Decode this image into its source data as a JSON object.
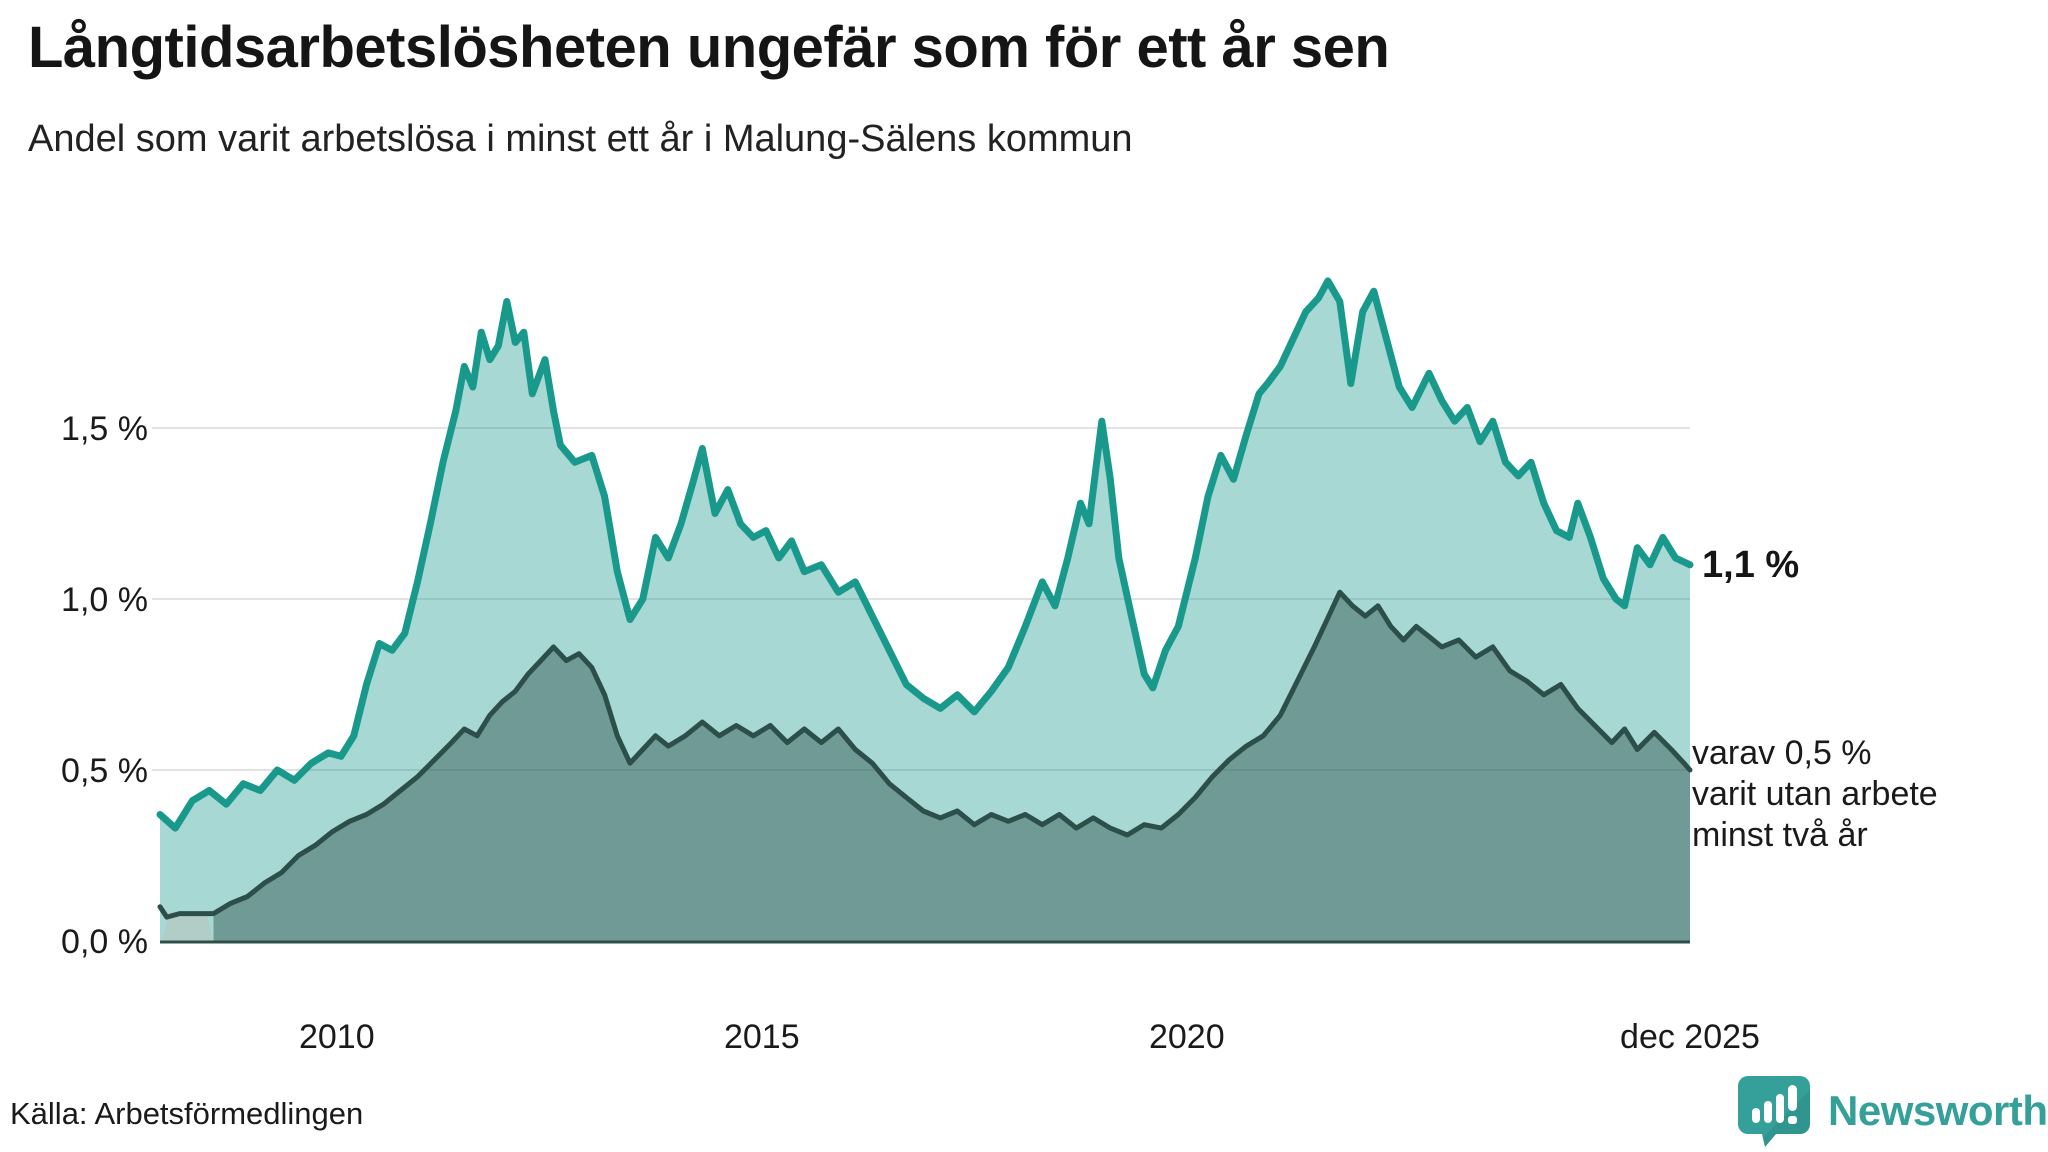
{
  "header": {
    "title": "Långtidsarbetslösheten ungefär som för ett år sen",
    "subtitle": "Andel som varit arbetslösa i minst ett år i Malung-Sälens kommun"
  },
  "annotations": {
    "latest_value": "1,1 %",
    "secondary": "varav 0,5 %\nvarit utan arbete\nminst två år"
  },
  "footer": {
    "source": "Källa: Arbetsförmedlingen",
    "logo_text": "Newsworthy"
  },
  "colors": {
    "teal_line": "#18998b",
    "teal_fill": "rgba(24,153,139,0.38)",
    "dark_line": "#2d4f4a",
    "dark_fill": "rgba(45,79,74,0.45)",
    "gridline": "#e2e2e2",
    "baseline": "#2d4f4a",
    "artifact_fill": "#b2cdc6",
    "logo_teal": "#35a09a",
    "text": "#1a1a1a"
  },
  "chart_data": {
    "type": "area",
    "title": "Långtidsarbetslösheten ungefär som för ett år sen",
    "subtitle": "Andel som varit arbetslösa i minst ett år i Malung-Sälens kommun",
    "unit": "%",
    "grid": "horizontal",
    "x_range": [
      2007.92,
      2025.92
    ],
    "ylim": [
      0,
      2.0
    ],
    "x_ticks": [
      {
        "label": "2010",
        "year": 2010
      },
      {
        "label": "2015",
        "year": 2015
      },
      {
        "label": "2020",
        "year": 2020
      },
      {
        "label": "dec 2025",
        "year": 2025.92
      }
    ],
    "y_ticks": [
      {
        "label": "0,0 %",
        "value": 0
      },
      {
        "label": "0,5 %",
        "value": 0.5
      },
      {
        "label": "1,0 %",
        "value": 1.0
      },
      {
        "label": "1,5 %",
        "value": 1.5
      }
    ],
    "series": [
      {
        "name": "Arbetslösa minst ett år",
        "end_label": "1,1 %",
        "line_color": "#18998b",
        "fill_color": "rgba(24,153,139,0.38)",
        "line_width": 7,
        "points": [
          [
            2007.92,
            0.37
          ],
          [
            2008.1,
            0.33
          ],
          [
            2008.3,
            0.41
          ],
          [
            2008.5,
            0.44
          ],
          [
            2008.7,
            0.4
          ],
          [
            2008.9,
            0.46
          ],
          [
            2009.1,
            0.44
          ],
          [
            2009.3,
            0.5
          ],
          [
            2009.5,
            0.47
          ],
          [
            2009.7,
            0.52
          ],
          [
            2009.9,
            0.55
          ],
          [
            2010.05,
            0.54
          ],
          [
            2010.2,
            0.6
          ],
          [
            2010.35,
            0.75
          ],
          [
            2010.5,
            0.87
          ],
          [
            2010.65,
            0.85
          ],
          [
            2010.8,
            0.9
          ],
          [
            2010.95,
            1.05
          ],
          [
            2011.1,
            1.22
          ],
          [
            2011.25,
            1.4
          ],
          [
            2011.4,
            1.55
          ],
          [
            2011.5,
            1.68
          ],
          [
            2011.6,
            1.62
          ],
          [
            2011.7,
            1.78
          ],
          [
            2011.8,
            1.7
          ],
          [
            2011.9,
            1.74
          ],
          [
            2012.0,
            1.87
          ],
          [
            2012.1,
            1.75
          ],
          [
            2012.2,
            1.78
          ],
          [
            2012.3,
            1.6
          ],
          [
            2012.45,
            1.7
          ],
          [
            2012.55,
            1.55
          ],
          [
            2012.63,
            1.45
          ],
          [
            2012.8,
            1.4
          ],
          [
            2013.0,
            1.42
          ],
          [
            2013.15,
            1.3
          ],
          [
            2013.3,
            1.08
          ],
          [
            2013.45,
            0.94
          ],
          [
            2013.6,
            1.0
          ],
          [
            2013.75,
            1.18
          ],
          [
            2013.9,
            1.12
          ],
          [
            2014.05,
            1.22
          ],
          [
            2014.2,
            1.35
          ],
          [
            2014.3,
            1.44
          ],
          [
            2014.45,
            1.25
          ],
          [
            2014.6,
            1.32
          ],
          [
            2014.75,
            1.22
          ],
          [
            2014.9,
            1.18
          ],
          [
            2015.05,
            1.2
          ],
          [
            2015.2,
            1.12
          ],
          [
            2015.35,
            1.17
          ],
          [
            2015.5,
            1.08
          ],
          [
            2015.7,
            1.1
          ],
          [
            2015.9,
            1.02
          ],
          [
            2016.1,
            1.05
          ],
          [
            2016.3,
            0.95
          ],
          [
            2016.5,
            0.85
          ],
          [
            2016.7,
            0.75
          ],
          [
            2016.9,
            0.71
          ],
          [
            2017.1,
            0.68
          ],
          [
            2017.3,
            0.72
          ],
          [
            2017.5,
            0.67
          ],
          [
            2017.7,
            0.73
          ],
          [
            2017.9,
            0.8
          ],
          [
            2018.1,
            0.92
          ],
          [
            2018.3,
            1.05
          ],
          [
            2018.45,
            0.98
          ],
          [
            2018.6,
            1.12
          ],
          [
            2018.75,
            1.28
          ],
          [
            2018.85,
            1.22
          ],
          [
            2019.0,
            1.52
          ],
          [
            2019.1,
            1.35
          ],
          [
            2019.2,
            1.12
          ],
          [
            2019.35,
            0.95
          ],
          [
            2019.5,
            0.78
          ],
          [
            2019.6,
            0.74
          ],
          [
            2019.75,
            0.85
          ],
          [
            2019.9,
            0.92
          ],
          [
            2020.1,
            1.12
          ],
          [
            2020.25,
            1.3
          ],
          [
            2020.4,
            1.42
          ],
          [
            2020.55,
            1.35
          ],
          [
            2020.7,
            1.48
          ],
          [
            2020.85,
            1.6
          ],
          [
            2020.95,
            1.63
          ],
          [
            2021.1,
            1.68
          ],
          [
            2021.25,
            1.76
          ],
          [
            2021.4,
            1.84
          ],
          [
            2021.55,
            1.88
          ],
          [
            2021.66,
            1.93
          ],
          [
            2021.8,
            1.87
          ],
          [
            2021.93,
            1.63
          ],
          [
            2022.07,
            1.84
          ],
          [
            2022.2,
            1.9
          ],
          [
            2022.35,
            1.76
          ],
          [
            2022.5,
            1.62
          ],
          [
            2022.65,
            1.56
          ],
          [
            2022.85,
            1.66
          ],
          [
            2023.0,
            1.58
          ],
          [
            2023.15,
            1.52
          ],
          [
            2023.3,
            1.56
          ],
          [
            2023.45,
            1.46
          ],
          [
            2023.6,
            1.52
          ],
          [
            2023.75,
            1.4
          ],
          [
            2023.9,
            1.36
          ],
          [
            2024.05,
            1.4
          ],
          [
            2024.2,
            1.28
          ],
          [
            2024.35,
            1.2
          ],
          [
            2024.5,
            1.18
          ],
          [
            2024.6,
            1.28
          ],
          [
            2024.75,
            1.18
          ],
          [
            2024.9,
            1.06
          ],
          [
            2025.05,
            1.0
          ],
          [
            2025.15,
            0.98
          ],
          [
            2025.3,
            1.15
          ],
          [
            2025.45,
            1.1
          ],
          [
            2025.6,
            1.18
          ],
          [
            2025.75,
            1.12
          ],
          [
            2025.92,
            1.1
          ]
        ]
      },
      {
        "name": "varav utan arbete minst två år",
        "end_label": "varav 0,5 % varit utan arbete minst två år",
        "line_color": "#2d4f4a",
        "fill_color": "rgba(45,79,74,0.45)",
        "line_width": 5,
        "fill_from": 2008.55,
        "points": [
          [
            2007.92,
            0.1
          ],
          [
            2008.0,
            0.07
          ],
          [
            2008.15,
            0.08
          ],
          [
            2008.55,
            0.08
          ],
          [
            2008.75,
            0.11
          ],
          [
            2008.95,
            0.13
          ],
          [
            2009.15,
            0.17
          ],
          [
            2009.35,
            0.2
          ],
          [
            2009.55,
            0.25
          ],
          [
            2009.75,
            0.28
          ],
          [
            2009.95,
            0.32
          ],
          [
            2010.15,
            0.35
          ],
          [
            2010.35,
            0.37
          ],
          [
            2010.55,
            0.4
          ],
          [
            2010.75,
            0.44
          ],
          [
            2010.95,
            0.48
          ],
          [
            2011.15,
            0.53
          ],
          [
            2011.35,
            0.58
          ],
          [
            2011.5,
            0.62
          ],
          [
            2011.65,
            0.6
          ],
          [
            2011.8,
            0.66
          ],
          [
            2011.95,
            0.7
          ],
          [
            2012.1,
            0.73
          ],
          [
            2012.25,
            0.78
          ],
          [
            2012.4,
            0.82
          ],
          [
            2012.55,
            0.86
          ],
          [
            2012.7,
            0.82
          ],
          [
            2012.85,
            0.84
          ],
          [
            2013.0,
            0.8
          ],
          [
            2013.15,
            0.72
          ],
          [
            2013.3,
            0.6
          ],
          [
            2013.45,
            0.52
          ],
          [
            2013.6,
            0.56
          ],
          [
            2013.75,
            0.6
          ],
          [
            2013.9,
            0.57
          ],
          [
            2014.1,
            0.6
          ],
          [
            2014.3,
            0.64
          ],
          [
            2014.5,
            0.6
          ],
          [
            2014.7,
            0.63
          ],
          [
            2014.9,
            0.6
          ],
          [
            2015.1,
            0.63
          ],
          [
            2015.3,
            0.58
          ],
          [
            2015.5,
            0.62
          ],
          [
            2015.7,
            0.58
          ],
          [
            2015.9,
            0.62
          ],
          [
            2016.1,
            0.56
          ],
          [
            2016.3,
            0.52
          ],
          [
            2016.5,
            0.46
          ],
          [
            2016.7,
            0.42
          ],
          [
            2016.9,
            0.38
          ],
          [
            2017.1,
            0.36
          ],
          [
            2017.3,
            0.38
          ],
          [
            2017.5,
            0.34
          ],
          [
            2017.7,
            0.37
          ],
          [
            2017.9,
            0.35
          ],
          [
            2018.1,
            0.37
          ],
          [
            2018.3,
            0.34
          ],
          [
            2018.5,
            0.37
          ],
          [
            2018.7,
            0.33
          ],
          [
            2018.9,
            0.36
          ],
          [
            2019.1,
            0.33
          ],
          [
            2019.3,
            0.31
          ],
          [
            2019.5,
            0.34
          ],
          [
            2019.7,
            0.33
          ],
          [
            2019.9,
            0.37
          ],
          [
            2020.1,
            0.42
          ],
          [
            2020.3,
            0.48
          ],
          [
            2020.5,
            0.53
          ],
          [
            2020.7,
            0.57
          ],
          [
            2020.9,
            0.6
          ],
          [
            2021.1,
            0.66
          ],
          [
            2021.3,
            0.76
          ],
          [
            2021.5,
            0.86
          ],
          [
            2021.65,
            0.94
          ],
          [
            2021.8,
            1.02
          ],
          [
            2021.95,
            0.98
          ],
          [
            2022.1,
            0.95
          ],
          [
            2022.25,
            0.98
          ],
          [
            2022.4,
            0.92
          ],
          [
            2022.55,
            0.88
          ],
          [
            2022.7,
            0.92
          ],
          [
            2022.85,
            0.89
          ],
          [
            2023.0,
            0.86
          ],
          [
            2023.2,
            0.88
          ],
          [
            2023.4,
            0.83
          ],
          [
            2023.6,
            0.86
          ],
          [
            2023.8,
            0.79
          ],
          [
            2024.0,
            0.76
          ],
          [
            2024.2,
            0.72
          ],
          [
            2024.4,
            0.75
          ],
          [
            2024.6,
            0.68
          ],
          [
            2024.8,
            0.63
          ],
          [
            2025.0,
            0.58
          ],
          [
            2025.15,
            0.62
          ],
          [
            2025.3,
            0.56
          ],
          [
            2025.5,
            0.61
          ],
          [
            2025.7,
            0.56
          ],
          [
            2025.85,
            0.52
          ],
          [
            2025.92,
            0.5
          ]
        ]
      }
    ]
  }
}
